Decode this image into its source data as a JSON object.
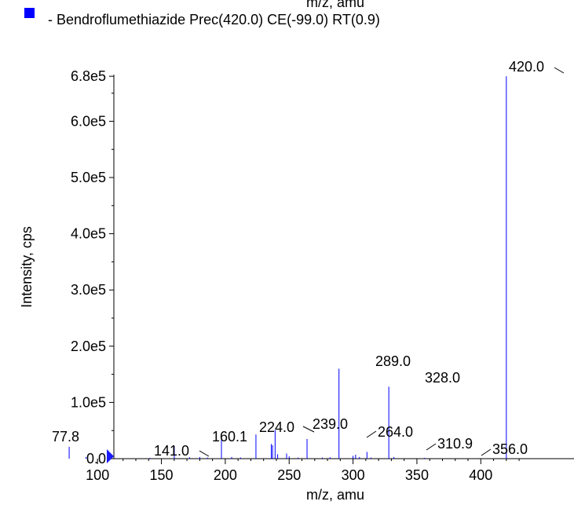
{
  "chart_data": {
    "type": "bar",
    "top_clipped_label": "m/z, amu",
    "legend": {
      "text": "- Bendroflumethiazide  Prec(420.0) CE(-99.0) RT(0.9)",
      "color": "#0000ff",
      "placement": "top-left"
    },
    "xlabel": "m/z, amu",
    "ylabel": "Intensity, cps",
    "xlim": [
      63,
      432
    ],
    "ylim": [
      0,
      692000
    ],
    "x_ticks": [
      100,
      150,
      200,
      250,
      300,
      350,
      400
    ],
    "x_tick_labels": [
      "100",
      "150",
      "200",
      "250",
      "300",
      "350",
      "400"
    ],
    "y_ticks": [
      0,
      100000,
      200000,
      300000,
      400000,
      500000,
      600000,
      680000
    ],
    "y_tick_labels": [
      "0.0",
      "1.0e5",
      "2.0e5",
      "3.0e5",
      "4.0e5",
      "5.0e5",
      "6.0e5",
      "6.8e5"
    ],
    "series_color": "#0000ff",
    "peaks": [
      {
        "x": 77.8,
        "y": 21000
      },
      {
        "x": 91.0,
        "y": 3000
      },
      {
        "x": 141.0,
        "y": 1500
      },
      {
        "x": 160.1,
        "y": 22000
      },
      {
        "x": 172.0,
        "y": 2500
      },
      {
        "x": 180.0,
        "y": 3000
      },
      {
        "x": 186.0,
        "y": 2000
      },
      {
        "x": 197.0,
        "y": 38000
      },
      {
        "x": 205.0,
        "y": 3000
      },
      {
        "x": 212.0,
        "y": 2000
      },
      {
        "x": 224.0,
        "y": 43000
      },
      {
        "x": 236.0,
        "y": 26000
      },
      {
        "x": 237.0,
        "y": 24000
      },
      {
        "x": 239.0,
        "y": 51000
      },
      {
        "x": 241.0,
        "y": 8000
      },
      {
        "x": 248.0,
        "y": 9000
      },
      {
        "x": 250.0,
        "y": 4000
      },
      {
        "x": 257.0,
        "y": 2000
      },
      {
        "x": 264.0,
        "y": 35000
      },
      {
        "x": 276.0,
        "y": 2000
      },
      {
        "x": 282.0,
        "y": 2500
      },
      {
        "x": 289.0,
        "y": 160000
      },
      {
        "x": 300.0,
        "y": 5000
      },
      {
        "x": 302.0,
        "y": 7000
      },
      {
        "x": 305.0,
        "y": 3000
      },
      {
        "x": 310.9,
        "y": 12000
      },
      {
        "x": 314.0,
        "y": 2000
      },
      {
        "x": 328.0,
        "y": 128000
      },
      {
        "x": 332.0,
        "y": 3000
      },
      {
        "x": 356.0,
        "y": 1500
      },
      {
        "x": 420.0,
        "y": 680000
      }
    ],
    "annotations": [
      {
        "label": "77.8",
        "x": 77.8
      },
      {
        "label": "141.0",
        "x": 141.0
      },
      {
        "label": "160.1",
        "x": 160.1
      },
      {
        "label": "224.0",
        "x": 224.0
      },
      {
        "label": "239.0",
        "x": 239.0
      },
      {
        "label": "264.0",
        "x": 264.0
      },
      {
        "label": "289.0",
        "x": 289.0
      },
      {
        "label": "310.9",
        "x": 310.9
      },
      {
        "label": "328.0",
        "x": 328.0
      },
      {
        "label": "356.0",
        "x": 356.0
      },
      {
        "label": "420.0",
        "x": 420.0
      }
    ]
  }
}
